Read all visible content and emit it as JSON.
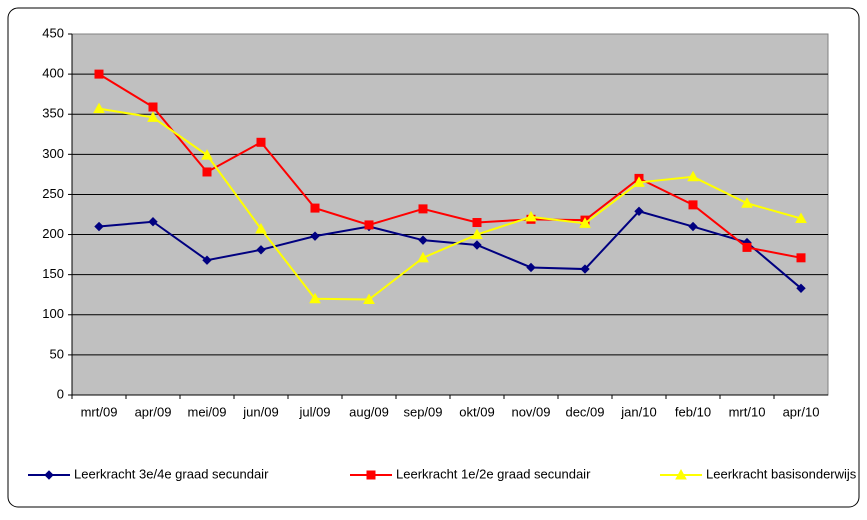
{
  "chart_data": {
    "type": "line",
    "categories": [
      "mrt/09",
      "apr/09",
      "mei/09",
      "jun/09",
      "jul/09",
      "aug/09",
      "sep/09",
      "okt/09",
      "nov/09",
      "dec/09",
      "jan/10",
      "feb/10",
      "mrt/10",
      "apr/10"
    ],
    "series": [
      {
        "name": "Leerkracht 3e/4e graad secundair",
        "color": "#000080",
        "marker": "diamond",
        "values": [
          210,
          216,
          168,
          181,
          198,
          210,
          193,
          187,
          159,
          157,
          229,
          210,
          190,
          133
        ]
      },
      {
        "name": "Leerkracht 1e/2e graad secundair",
        "color": "#ff0000",
        "marker": "square",
        "values": [
          400,
          359,
          278,
          315,
          233,
          212,
          232,
          215,
          219,
          218,
          270,
          237,
          184,
          171
        ]
      },
      {
        "name": "Leerkracht basisonderwijs",
        "color": "#ffff00",
        "marker": "triangle",
        "values": [
          357,
          346,
          299,
          207,
          120,
          119,
          171,
          200,
          222,
          214,
          265,
          272,
          239,
          220
        ]
      }
    ],
    "ylim": [
      0,
      450
    ],
    "yticks": [
      0,
      50,
      100,
      150,
      200,
      250,
      300,
      350,
      400,
      450
    ],
    "grid": true,
    "legend": "bottom"
  }
}
